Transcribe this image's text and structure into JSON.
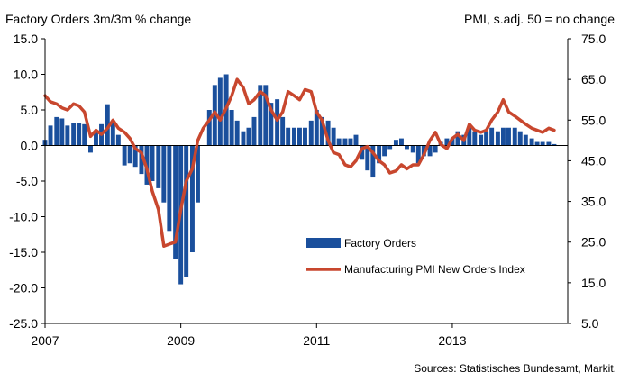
{
  "chart_data": {
    "type": "bar",
    "title_left": "Factory Orders 3m/3m % change",
    "title_right": "PMI,  s.adj. 50 = no change",
    "source": "Sources: Statistisches Bundesamt, Markit.",
    "x_ticks": [
      "2007",
      "2009",
      "2011",
      "2013"
    ],
    "x_range": [
      2007.0,
      2014.7
    ],
    "y_left": {
      "range": [
        -25,
        15
      ],
      "ticks": [
        "15.0",
        "10.0",
        "5.0",
        "0.0",
        "-5.0",
        "-10.0",
        "-15.0",
        "-20.0",
        "-25.0"
      ]
    },
    "y_right": {
      "range": [
        5,
        75
      ],
      "ticks": [
        "75.0",
        "65.0",
        "55.0",
        "45.0",
        "35.0",
        "25.0",
        "15.0",
        "5.0"
      ]
    },
    "legend": {
      "position": "center-right",
      "bar_label": "Factory Orders",
      "line_label": "Manufacturing PMI New Orders Index"
    },
    "colors": {
      "bars": "#1a4f9c",
      "line": "#c8472e",
      "axis": "#000000"
    },
    "series": [
      {
        "name": "Factory Orders",
        "axis": "left",
        "type": "bar",
        "x": [
          2007.0,
          2007.08,
          2007.17,
          2007.25,
          2007.33,
          2007.42,
          2007.5,
          2007.58,
          2007.67,
          2007.75,
          2007.83,
          2007.92,
          2008.0,
          2008.08,
          2008.17,
          2008.25,
          2008.33,
          2008.42,
          2008.5,
          2008.58,
          2008.67,
          2008.75,
          2008.83,
          2008.92,
          2009.0,
          2009.08,
          2009.17,
          2009.25,
          2009.33,
          2009.42,
          2009.5,
          2009.58,
          2009.67,
          2009.75,
          2009.83,
          2009.92,
          2010.0,
          2010.08,
          2010.17,
          2010.25,
          2010.33,
          2010.42,
          2010.5,
          2010.58,
          2010.67,
          2010.75,
          2010.83,
          2010.92,
          2011.0,
          2011.08,
          2011.17,
          2011.25,
          2011.33,
          2011.42,
          2011.5,
          2011.58,
          2011.67,
          2011.75,
          2011.83,
          2011.92,
          2012.0,
          2012.08,
          2012.17,
          2012.25,
          2012.33,
          2012.42,
          2012.5,
          2012.58,
          2012.67,
          2012.75,
          2012.83,
          2012.92,
          2013.0,
          2013.08,
          2013.17,
          2013.25,
          2013.33,
          2013.42,
          2013.5,
          2013.58,
          2013.67,
          2013.75,
          2013.83,
          2013.92,
          2014.0,
          2014.08,
          2014.17,
          2014.25,
          2014.33,
          2014.42,
          2014.5
        ],
        "values": [
          0.8,
          2.8,
          4.0,
          3.8,
          2.8,
          3.2,
          3.2,
          3.0,
          -1.0,
          2.0,
          3.0,
          5.8,
          3.5,
          1.5,
          -2.8,
          -2.5,
          -3.0,
          -4.0,
          -5.5,
          -5.0,
          -6.0,
          -8.0,
          -12.0,
          -16.0,
          -19.5,
          -18.5,
          -15.0,
          -8.0,
          0.0,
          5.0,
          8.5,
          9.5,
          10.0,
          5.0,
          3.5,
          2.0,
          2.5,
          4.0,
          8.5,
          8.5,
          6.0,
          6.5,
          4.0,
          2.5,
          2.5,
          2.5,
          2.5,
          3.5,
          5.0,
          4.0,
          3.5,
          2.5,
          1.0,
          1.0,
          1.0,
          1.5,
          -2.0,
          -3.5,
          -4.5,
          -2.5,
          -1.5,
          -0.5,
          0.8,
          1.0,
          -0.5,
          -1.0,
          -2.5,
          -1.5,
          -1.5,
          -1.0,
          0.5,
          1.0,
          1.0,
          2.0,
          1.5,
          2.5,
          2.0,
          1.5,
          2.0,
          2.5,
          2.0,
          2.5,
          2.5,
          2.5,
          2.0,
          1.5,
          1.0,
          0.5,
          0.5,
          0.5,
          0.2
        ]
      },
      {
        "name": "Manufacturing PMI New Orders Index",
        "axis": "right",
        "type": "line",
        "x": [
          2007.0,
          2007.08,
          2007.17,
          2007.25,
          2007.33,
          2007.42,
          2007.5,
          2007.58,
          2007.67,
          2007.75,
          2007.83,
          2007.92,
          2008.0,
          2008.08,
          2008.17,
          2008.25,
          2008.33,
          2008.42,
          2008.5,
          2008.58,
          2008.67,
          2008.75,
          2008.83,
          2008.92,
          2009.0,
          2009.08,
          2009.17,
          2009.25,
          2009.33,
          2009.42,
          2009.5,
          2009.58,
          2009.67,
          2009.75,
          2009.83,
          2009.92,
          2010.0,
          2010.08,
          2010.17,
          2010.25,
          2010.33,
          2010.42,
          2010.5,
          2010.58,
          2010.67,
          2010.75,
          2010.83,
          2010.92,
          2011.0,
          2011.08,
          2011.17,
          2011.25,
          2011.33,
          2011.42,
          2011.5,
          2011.58,
          2011.67,
          2011.75,
          2011.83,
          2011.92,
          2012.0,
          2012.08,
          2012.17,
          2012.25,
          2012.33,
          2012.42,
          2012.5,
          2012.58,
          2012.67,
          2012.75,
          2012.83,
          2012.92,
          2013.0,
          2013.08,
          2013.17,
          2013.25,
          2013.33,
          2013.42,
          2013.5,
          2013.58,
          2013.67,
          2013.75,
          2013.83,
          2013.92,
          2014.0,
          2014.08,
          2014.17,
          2014.25,
          2014.33,
          2014.42,
          2014.5
        ],
        "values": [
          61.0,
          59.5,
          59.0,
          58.0,
          57.5,
          59.0,
          58.5,
          57.0,
          51.0,
          52.5,
          51.5,
          53.0,
          55.0,
          53.0,
          52.0,
          50.5,
          48.0,
          47.0,
          43.0,
          37.5,
          33.0,
          24.0,
          24.5,
          25.0,
          33.0,
          40.0,
          43.0,
          50.0,
          53.0,
          55.0,
          57.0,
          55.0,
          58.0,
          61.0,
          65.0,
          63.0,
          59.0,
          60.0,
          62.0,
          61.0,
          57.5,
          55.0,
          57.0,
          62.0,
          61.0,
          60.0,
          62.5,
          62.0,
          57.0,
          55.0,
          50.0,
          47.0,
          46.5,
          44.0,
          43.5,
          45.0,
          48.0,
          48.5,
          47.0,
          45.0,
          44.0,
          42.0,
          42.5,
          44.0,
          43.0,
          44.0,
          44.0,
          46.5,
          50.0,
          52.0,
          49.0,
          48.0,
          50.5,
          51.5,
          50.0,
          54.0,
          52.5,
          52.0,
          52.5,
          55.0,
          57.0,
          60.0,
          57.0,
          56.0,
          55.0,
          54.0,
          53.0,
          52.5,
          52.0,
          53.0,
          52.5
        ]
      }
    ]
  }
}
